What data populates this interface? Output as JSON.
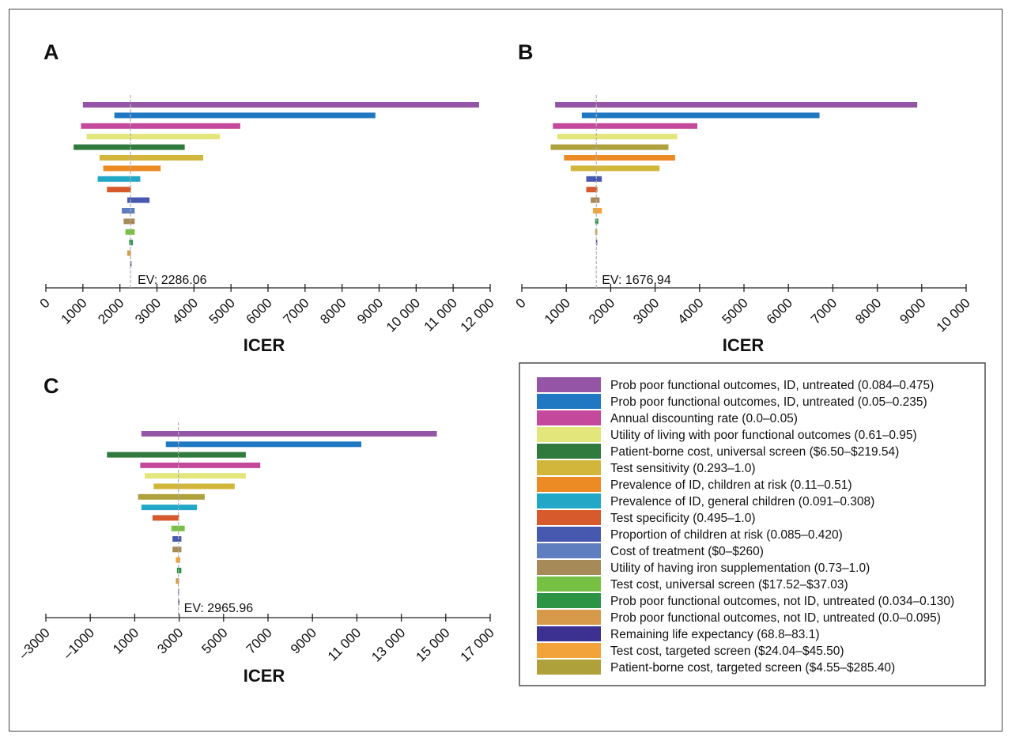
{
  "legend": {
    "items": [
      {
        "label": "Prob poor functional outcomes, ID, untreated (0.084–0.475)",
        "color": "#9555a6"
      },
      {
        "label": "Prob poor functional outcomes, ID, untreated (0.05–0.235)",
        "color": "#1f78c1"
      },
      {
        "label": "Annual discounting rate (0.0–0.05)",
        "color": "#c4489b"
      },
      {
        "label": "Utility of living with poor functional outcomes (0.61–0.95)",
        "color": "#e3e67a"
      },
      {
        "label": "Patient-borne cost, universal screen ($6.50–$219.54)",
        "color": "#2f7a3c"
      },
      {
        "label": "Test sensitivity (0.293–1.0)",
        "color": "#d1b63b"
      },
      {
        "label": "Prevalence of ID, children at risk (0.11–0.51)",
        "color": "#ec8a24"
      },
      {
        "label": "Prevalence of ID, general children (0.091–0.308)",
        "color": "#22a8c6"
      },
      {
        "label": "Test specificity (0.495–1.0)",
        "color": "#d65a2c"
      },
      {
        "label": "Proportion of children at risk (0.085–0.420)",
        "color": "#4759ae"
      },
      {
        "label": "Cost of treatment ($0–$260)",
        "color": "#5f7ec0"
      },
      {
        "label": "Utility of having iron supplementation (0.73–1.0)",
        "color": "#a68a57"
      },
      {
        "label": "Test cost, universal screen ($17.52–$37.03)",
        "color": "#76c043"
      },
      {
        "label": "Prob poor functional outcomes, not ID, untreated (0.034–0.130)",
        "color": "#2c9444"
      },
      {
        "label": "Prob poor functional outcomes, not ID, untreated (0.0–0.095)",
        "color": "#d69a4a"
      },
      {
        "label": "Remaining life expectancy (68.8–83.1)",
        "color": "#3c3190"
      },
      {
        "label": "Test cost, targeted screen ($24.04–$45.50)",
        "color": "#f2a43b"
      },
      {
        "label": "Patient-borne cost, targeted screen ($4.55–$285.40)",
        "color": "#aea03b"
      }
    ]
  },
  "chart_data": [
    {
      "panel": "A",
      "type": "bar",
      "orientation": "horizontal-tornado",
      "xlabel": "ICER",
      "xlim": [
        0,
        12000
      ],
      "xticks": [
        0,
        1000,
        2000,
        3000,
        4000,
        5000,
        6000,
        7000,
        8000,
        9000,
        10000,
        11000,
        12000
      ],
      "xtick_labels": [
        "0",
        "1000",
        "2000",
        "3000",
        "4000",
        "5000",
        "6000",
        "7000",
        "8000",
        "9000",
        "10 000",
        "11 000",
        "12 000"
      ],
      "ev": 2286.06,
      "ev_label": "EV: 2286.06",
      "bars": [
        {
          "color": "#9555a6",
          "low": 1000,
          "high": 11700
        },
        {
          "color": "#1f78c1",
          "low": 1850,
          "high": 8900
        },
        {
          "color": "#c4489b",
          "low": 950,
          "high": 5250
        },
        {
          "color": "#e3e67a",
          "low": 1100,
          "high": 4700
        },
        {
          "color": "#2f7a3c",
          "low": 750,
          "high": 3750
        },
        {
          "color": "#d1b63b",
          "low": 1450,
          "high": 4250
        },
        {
          "color": "#ec8a24",
          "low": 1550,
          "high": 3100
        },
        {
          "color": "#22a8c6",
          "low": 1400,
          "high": 2550
        },
        {
          "color": "#d65a2c",
          "low": 1650,
          "high": 2300
        },
        {
          "color": "#4759ae",
          "low": 2200,
          "high": 2800
        },
        {
          "color": "#5f7ec0",
          "low": 2050,
          "high": 2400
        },
        {
          "color": "#a68a57",
          "low": 2100,
          "high": 2400
        },
        {
          "color": "#76c043",
          "low": 2150,
          "high": 2400
        },
        {
          "color": "#2c9444",
          "low": 2250,
          "high": 2350
        },
        {
          "color": "#d69a4a",
          "low": 2200,
          "high": 2300
        },
        {
          "color": "#3c3190",
          "low": 2280,
          "high": 2310
        }
      ]
    },
    {
      "panel": "B",
      "type": "bar",
      "orientation": "horizontal-tornado",
      "xlabel": "ICER",
      "xlim": [
        0,
        10000
      ],
      "xticks": [
        0,
        1000,
        2000,
        3000,
        4000,
        5000,
        6000,
        7000,
        8000,
        9000,
        10000
      ],
      "xtick_labels": [
        "0",
        "1000",
        "2000",
        "3000",
        "4000",
        "5000",
        "6000",
        "7000",
        "8000",
        "9000",
        "10 000"
      ],
      "ev": 1676.94,
      "ev_label": "EV: 1676.94",
      "bars": [
        {
          "color": "#9555a6",
          "low": 750,
          "high": 8900
        },
        {
          "color": "#1f78c1",
          "low": 1350,
          "high": 6700
        },
        {
          "color": "#c4489b",
          "low": 700,
          "high": 3950
        },
        {
          "color": "#e3e67a",
          "low": 800,
          "high": 3500
        },
        {
          "color": "#aea03b",
          "low": 650,
          "high": 3300
        },
        {
          "color": "#ec8a24",
          "low": 950,
          "high": 3450
        },
        {
          "color": "#d1b63b",
          "low": 1100,
          "high": 3100
        },
        {
          "color": "#4759ae",
          "low": 1450,
          "high": 1800
        },
        {
          "color": "#d65a2c",
          "low": 1450,
          "high": 1700
        },
        {
          "color": "#a68a57",
          "low": 1550,
          "high": 1750
        },
        {
          "color": "#f2a43b",
          "low": 1600,
          "high": 1800
        },
        {
          "color": "#2c9444",
          "low": 1650,
          "high": 1720
        },
        {
          "color": "#d69a4a",
          "low": 1650,
          "high": 1700
        },
        {
          "color": "#3c3190",
          "low": 1670,
          "high": 1690
        }
      ]
    },
    {
      "panel": "C",
      "type": "bar",
      "orientation": "horizontal-tornado",
      "xlabel": "ICER",
      "xlim": [
        -3000,
        17000
      ],
      "xticks": [
        -3000,
        -1000,
        1000,
        3000,
        5000,
        7000,
        9000,
        11000,
        13000,
        15000,
        17000
      ],
      "xtick_labels": [
        "–3000",
        "–1000",
        "1000",
        "3000",
        "5000",
        "7000",
        "9000",
        "11 000",
        "13 000",
        "15 000",
        "17 000"
      ],
      "ev": 2965.96,
      "ev_label": "EV: 2965.96",
      "bars": [
        {
          "color": "#9555a6",
          "low": 1300,
          "high": 14600
        },
        {
          "color": "#1f78c1",
          "low": 2400,
          "high": 11200
        },
        {
          "color": "#2f7a3c",
          "low": -250,
          "high": 6000
        },
        {
          "color": "#c4489b",
          "low": 1250,
          "high": 6650
        },
        {
          "color": "#e3e67a",
          "low": 1450,
          "high": 6000
        },
        {
          "color": "#d1b63b",
          "low": 1850,
          "high": 5500
        },
        {
          "color": "#aea03b",
          "low": 1150,
          "high": 4150
        },
        {
          "color": "#22a8c6",
          "low": 1300,
          "high": 3800
        },
        {
          "color": "#d65a2c",
          "low": 1800,
          "high": 3000
        },
        {
          "color": "#76c043",
          "low": 2650,
          "high": 3250
        },
        {
          "color": "#4759ae",
          "low": 2700,
          "high": 3100
        },
        {
          "color": "#a68a57",
          "low": 2700,
          "high": 3100
        },
        {
          "color": "#f2a43b",
          "low": 2850,
          "high": 3050
        },
        {
          "color": "#2c9444",
          "low": 2900,
          "high": 3100
        },
        {
          "color": "#d69a4a",
          "low": 2850,
          "high": 3000
        },
        {
          "color": "#5f7ec0",
          "low": 2950,
          "high": 3000
        },
        {
          "color": "#3c3190",
          "low": 2955,
          "high": 2985
        }
      ]
    }
  ]
}
